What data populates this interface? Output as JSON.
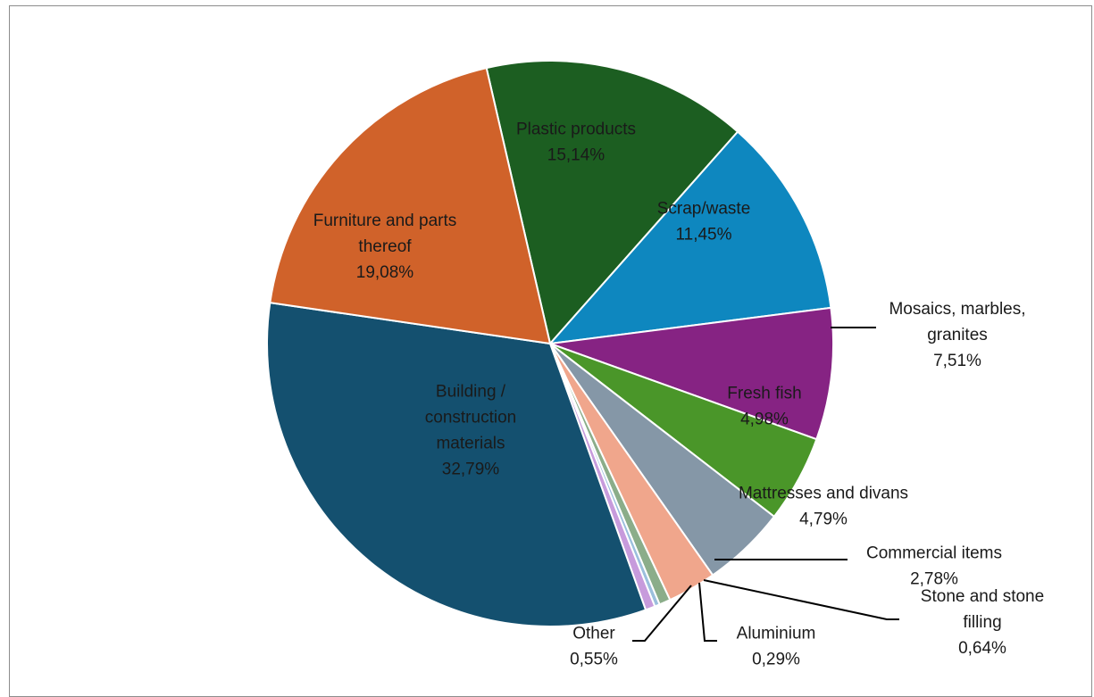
{
  "chart_data": {
    "type": "pie",
    "title": "",
    "slices": [
      {
        "label": "Plastic products",
        "lines": [
          "Plastic products"
        ],
        "pct": "15,14%",
        "value": 15.14,
        "color": "#1c5e21"
      },
      {
        "label": "Scrap/waste",
        "lines": [
          "Scrap/waste"
        ],
        "pct": "11,45%",
        "value": 11.45,
        "color": "#0e87bf"
      },
      {
        "label": "Mosaics, marbles, granites",
        "lines": [
          "Mosaics, marbles,",
          "granites"
        ],
        "pct": "7,51%",
        "value": 7.51,
        "color": "#862383"
      },
      {
        "label": "Fresh fish",
        "lines": [
          "Fresh fish"
        ],
        "pct": "4,98%",
        "value": 4.98,
        "color": "#4a9629"
      },
      {
        "label": "Mattresses and divans",
        "lines": [
          "Mattresses and divans"
        ],
        "pct": "4,79%",
        "value": 4.79,
        "color": "#8597a7"
      },
      {
        "label": "Commercial items",
        "lines": [
          "Commercial items"
        ],
        "pct": "2,78%",
        "value": 2.78,
        "color": "#f0a68c"
      },
      {
        "label": "Stone and stone filling",
        "lines": [
          "Stone and stone",
          "filling"
        ],
        "pct": "0,64%",
        "value": 0.64,
        "color": "#8bad8a"
      },
      {
        "label": "Aluminium",
        "lines": [
          "Aluminium"
        ],
        "pct": "0,29%",
        "value": 0.29,
        "color": "#9bbfdd"
      },
      {
        "label": "Other",
        "lines": [
          "Other"
        ],
        "pct": "0,55%",
        "value": 0.55,
        "color": "#c79bdc"
      },
      {
        "label": "Building / construction materials",
        "lines": [
          "Building /",
          "construction",
          "materials"
        ],
        "pct": "32,79%",
        "value": 32.79,
        "color": "#14506f"
      },
      {
        "label": "Furniture and parts thereof",
        "lines": [
          "Furniture and parts",
          "thereof"
        ],
        "pct": "19,08%",
        "value": 19.08,
        "color": "#d0622a"
      }
    ]
  }
}
